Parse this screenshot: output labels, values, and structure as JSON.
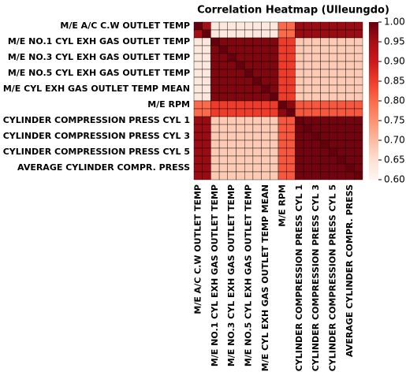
{
  "chart_data": {
    "type": "heatmap",
    "title": "Correlation Heatmap  (Ulleungdo)",
    "categories": [
      "M/E A/C C.W OUTLET TEMP",
      null,
      "M/E NO.1 CYL EXH GAS OUTLET TEMP",
      null,
      "M/E NO.3 CYL EXH GAS OUTLET TEMP",
      null,
      "M/E NO.5 CYL EXH GAS OUTLET TEMP",
      null,
      "M/E CYL EXH GAS OUTLET TEMP MEAN",
      null,
      "M/E RPM",
      null,
      "CYLINDER COMPRESSION PRESS CYL 1",
      null,
      "CYLINDER COMPRESSION PRESS CYL 3",
      null,
      "CYLINDER COMPRESSION PRESS CYL 5",
      null,
      "AVERAGE CYLINDER COMPR. PRESS",
      null
    ],
    "values": [
      [
        1,
        0.95,
        0.63,
        0.63,
        0.63,
        0.63,
        0.63,
        0.63,
        0.63,
        0.63,
        0.8,
        0.8,
        0.96,
        0.96,
        0.96,
        0.96,
        0.96,
        0.96,
        0.96,
        0.96
      ],
      [
        0.95,
        1,
        0.63,
        0.63,
        0.63,
        0.63,
        0.63,
        0.63,
        0.63,
        0.63,
        0.8,
        0.8,
        0.96,
        0.96,
        0.96,
        0.96,
        0.96,
        0.96,
        0.96,
        0.96
      ],
      [
        0.63,
        0.63,
        1,
        0.98,
        0.98,
        0.98,
        0.98,
        0.98,
        0.98,
        0.98,
        0.85,
        0.85,
        0.68,
        0.68,
        0.68,
        0.68,
        0.68,
        0.68,
        0.68,
        0.68
      ],
      [
        0.63,
        0.63,
        0.98,
        1,
        0.98,
        0.98,
        0.98,
        0.98,
        0.98,
        0.98,
        0.85,
        0.85,
        0.68,
        0.68,
        0.68,
        0.68,
        0.68,
        0.68,
        0.68,
        0.68
      ],
      [
        0.63,
        0.63,
        0.98,
        0.98,
        1,
        0.98,
        0.98,
        0.98,
        0.98,
        0.98,
        0.85,
        0.85,
        0.68,
        0.68,
        0.68,
        0.68,
        0.68,
        0.68,
        0.68,
        0.68
      ],
      [
        0.63,
        0.63,
        0.98,
        0.98,
        0.98,
        1,
        0.98,
        0.98,
        0.98,
        0.98,
        0.85,
        0.85,
        0.68,
        0.68,
        0.68,
        0.68,
        0.68,
        0.68,
        0.68,
        0.68
      ],
      [
        0.63,
        0.63,
        0.98,
        0.98,
        0.98,
        0.98,
        1,
        0.98,
        0.98,
        0.98,
        0.85,
        0.85,
        0.68,
        0.68,
        0.68,
        0.68,
        0.68,
        0.68,
        0.68,
        0.68
      ],
      [
        0.63,
        0.63,
        0.98,
        0.98,
        0.98,
        0.98,
        0.98,
        1,
        0.98,
        0.98,
        0.85,
        0.85,
        0.68,
        0.68,
        0.68,
        0.68,
        0.68,
        0.68,
        0.68,
        0.68
      ],
      [
        0.63,
        0.63,
        0.98,
        0.98,
        0.98,
        0.98,
        0.98,
        0.98,
        1,
        0.98,
        0.85,
        0.85,
        0.68,
        0.68,
        0.68,
        0.68,
        0.68,
        0.68,
        0.68,
        0.68
      ],
      [
        0.63,
        0.63,
        0.98,
        0.98,
        0.98,
        0.98,
        0.98,
        0.98,
        0.98,
        1,
        0.85,
        0.85,
        0.68,
        0.68,
        0.68,
        0.68,
        0.68,
        0.68,
        0.68,
        0.68
      ],
      [
        0.8,
        0.8,
        0.85,
        0.85,
        0.85,
        0.85,
        0.85,
        0.85,
        0.85,
        0.85,
        1,
        0.97,
        0.82,
        0.82,
        0.82,
        0.82,
        0.82,
        0.82,
        0.82,
        0.82
      ],
      [
        0.8,
        0.8,
        0.85,
        0.85,
        0.85,
        0.85,
        0.85,
        0.85,
        0.85,
        0.85,
        0.97,
        1,
        0.82,
        0.82,
        0.82,
        0.82,
        0.82,
        0.82,
        0.82,
        0.82
      ],
      [
        0.96,
        0.96,
        0.68,
        0.68,
        0.68,
        0.68,
        0.68,
        0.68,
        0.68,
        0.68,
        0.82,
        0.82,
        1,
        0.99,
        0.99,
        0.99,
        0.99,
        0.99,
        0.99,
        0.99
      ],
      [
        0.96,
        0.96,
        0.68,
        0.68,
        0.68,
        0.68,
        0.68,
        0.68,
        0.68,
        0.68,
        0.82,
        0.82,
        0.99,
        1,
        0.99,
        0.99,
        0.99,
        0.99,
        0.99,
        0.99
      ],
      [
        0.96,
        0.96,
        0.68,
        0.68,
        0.68,
        0.68,
        0.68,
        0.68,
        0.68,
        0.68,
        0.82,
        0.82,
        0.99,
        0.99,
        1,
        0.99,
        0.99,
        0.99,
        0.99,
        0.99
      ],
      [
        0.96,
        0.96,
        0.68,
        0.68,
        0.68,
        0.68,
        0.68,
        0.68,
        0.68,
        0.68,
        0.82,
        0.82,
        0.99,
        0.99,
        0.99,
        1,
        0.99,
        0.99,
        0.99,
        0.99
      ],
      [
        0.96,
        0.96,
        0.68,
        0.68,
        0.68,
        0.68,
        0.68,
        0.68,
        0.68,
        0.68,
        0.82,
        0.82,
        0.99,
        0.99,
        0.99,
        0.99,
        1,
        0.99,
        0.99,
        0.99
      ],
      [
        0.96,
        0.96,
        0.68,
        0.68,
        0.68,
        0.68,
        0.68,
        0.68,
        0.68,
        0.68,
        0.82,
        0.82,
        0.99,
        0.99,
        0.99,
        0.99,
        0.99,
        1,
        0.99,
        0.99
      ],
      [
        0.96,
        0.96,
        0.68,
        0.68,
        0.68,
        0.68,
        0.68,
        0.68,
        0.68,
        0.68,
        0.82,
        0.82,
        0.99,
        0.99,
        0.99,
        0.99,
        0.99,
        0.99,
        1,
        0.99
      ],
      [
        0.96,
        0.96,
        0.68,
        0.68,
        0.68,
        0.68,
        0.68,
        0.68,
        0.68,
        0.68,
        0.82,
        0.82,
        0.99,
        0.99,
        0.99,
        0.99,
        0.99,
        0.99,
        0.99,
        1
      ]
    ],
    "colormap": "Reds",
    "zlim": [
      0.6,
      1
    ],
    "zticks": [
      {
        "value": 0.6,
        "label": "0.60"
      },
      {
        "value": 0.65,
        "label": "0.65"
      },
      {
        "value": 0.7,
        "label": "0.70"
      },
      {
        "value": 0.75,
        "label": "0.75"
      },
      {
        "value": 0.8,
        "label": "0.80"
      },
      {
        "value": 0.85,
        "label": "0.85"
      },
      {
        "value": 0.9,
        "label": "0.90"
      },
      {
        "value": 0.95,
        "label": "0.95"
      },
      {
        "value": 1,
        "label": "1.00"
      }
    ]
  }
}
